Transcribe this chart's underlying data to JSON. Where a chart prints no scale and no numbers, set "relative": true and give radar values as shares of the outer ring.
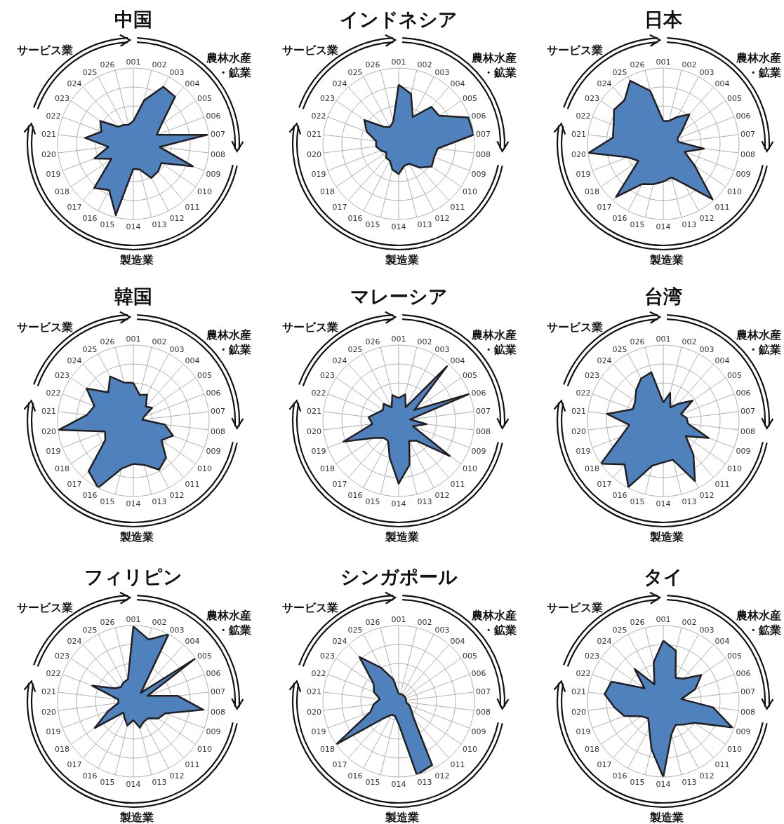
{
  "chart_data": [
    {
      "type": "radar",
      "title": "中国",
      "relative": true,
      "grid": true,
      "categories": [
        "001",
        "002",
        "003",
        "004",
        "005",
        "006",
        "007",
        "008",
        "009",
        "010",
        "011",
        "012",
        "013",
        "014",
        "015",
        "016",
        "017",
        "018",
        "019",
        "020",
        "021",
        "022",
        "023",
        "024",
        "025",
        "026"
      ],
      "annotations": [
        "農林水産・鉱業",
        "製造業",
        "サービス業"
      ],
      "series": [
        {
          "color": "#4f81bd",
          "values": [
            0.3,
            0.59,
            0.85,
            0.83,
            0.45,
            0.33,
            0.98,
            0.35,
            0.84,
            0.45,
            0.49,
            0.51,
            0.35,
            0.33,
            0.97,
            0.69,
            0.78,
            0.35,
            0.55,
            0.33,
            0.64,
            0.45,
            0.53,
            0.3,
            0.28,
            0.26
          ]
        }
      ]
    },
    {
      "type": "radar",
      "title": "インドネシア",
      "relative": true,
      "grid": true,
      "categories": [
        "001",
        "002",
        "003",
        "004",
        "005",
        "006",
        "007",
        "008",
        "009",
        "010",
        "011",
        "012",
        "013",
        "014",
        "015",
        "016",
        "017",
        "018",
        "019",
        "020",
        "021",
        "022",
        "023",
        "024",
        "025",
        "026"
      ],
      "annotations": [
        "農林水産・鉱業",
        "製造業",
        "サービス業"
      ],
      "series": [
        {
          "color": "#4f81bd",
          "values": [
            0.78,
            0.68,
            0.4,
            0.65,
            0.65,
            0.98,
            1.0,
            0.52,
            0.5,
            0.53,
            0.42,
            0.3,
            0.3,
            0.4,
            0.35,
            0.25,
            0.25,
            0.2,
            0.25,
            0.3,
            0.3,
            0.45,
            0.55,
            0.3,
            0.25,
            0.3
          ]
        }
      ]
    },
    {
      "type": "radar",
      "title": "日本",
      "relative": true,
      "grid": true,
      "categories": [
        "001",
        "002",
        "003",
        "004",
        "005",
        "006",
        "007",
        "008",
        "009",
        "010",
        "011",
        "012",
        "013",
        "014",
        "015",
        "016",
        "017",
        "018",
        "019",
        "020",
        "021",
        "022",
        "023",
        "024",
        "025",
        "026"
      ],
      "annotations": [
        "農林水産・鉱業",
        "製造業",
        "サービス業"
      ],
      "series": [
        {
          "color": "#4f81bd",
          "values": [
            0.3,
            0.31,
            0.4,
            0.52,
            0.3,
            0.2,
            0.2,
            0.54,
            0.3,
            0.5,
            0.98,
            0.6,
            0.46,
            0.5,
            0.55,
            0.6,
            0.94,
            0.4,
            0.5,
            0.99,
            0.67,
            0.7,
            0.79,
            0.77,
            0.94,
            0.72
          ]
        }
      ]
    },
    {
      "type": "radar",
      "title": "韓国",
      "relative": true,
      "grid": true,
      "categories": [
        "001",
        "002",
        "003",
        "004",
        "005",
        "006",
        "007",
        "008",
        "009",
        "010",
        "011",
        "012",
        "013",
        "014",
        "015",
        "016",
        "017",
        "018",
        "019",
        "020",
        "021",
        "022",
        "023",
        "024",
        "025",
        "026"
      ],
      "annotations": [
        "農林水産・鉱業",
        "製造業",
        "サービス業"
      ],
      "series": [
        {
          "color": "#4f81bd",
          "values": [
            0.5,
            0.35,
            0.39,
            0.25,
            0.3,
            0.15,
            0.12,
            0.42,
            0.56,
            0.45,
            0.65,
            0.73,
            0.6,
            0.57,
            0.65,
            1.0,
            0.89,
            0.45,
            0.4,
            0.99,
            0.62,
            0.55,
            0.75,
            0.5,
            0.66,
            0.52
          ]
        }
      ]
    },
    {
      "type": "radar",
      "title": "マレーシア",
      "relative": true,
      "grid": true,
      "categories": [
        "001",
        "002",
        "003",
        "004",
        "005",
        "006",
        "007",
        "008",
        "009",
        "010",
        "011",
        "012",
        "013",
        "014",
        "015",
        "016",
        "017",
        "018",
        "019",
        "020",
        "021",
        "022",
        "023",
        "024",
        "025",
        "026"
      ],
      "annotations": [
        "農林水産・鉱業",
        "製造業",
        "サービス業"
      ],
      "series": [
        {
          "color": "#4f81bd",
          "values": [
            0.3,
            0.36,
            0.2,
            0.96,
            0.25,
            1.0,
            0.15,
            0.37,
            0.2,
            0.82,
            0.35,
            0.3,
            0.6,
            0.83,
            0.5,
            0.3,
            0.3,
            0.4,
            0.78,
            0.35,
            0.4,
            0.3,
            0.25,
            0.3,
            0.2,
            0.35
          ]
        }
      ]
    },
    {
      "type": "radar",
      "title": "台湾",
      "relative": true,
      "grid": true,
      "categories": [
        "001",
        "002",
        "003",
        "004",
        "005",
        "006",
        "007",
        "008",
        "009",
        "010",
        "011",
        "012",
        "013",
        "014",
        "015",
        "016",
        "017",
        "018",
        "019",
        "020",
        "021",
        "022",
        "023",
        "024",
        "025",
        "026"
      ],
      "annotations": [
        "農林水産・鉱業",
        "製造業",
        "サービス業"
      ],
      "series": [
        {
          "color": "#4f81bd",
          "values": [
            0.24,
            0.38,
            0.2,
            0.3,
            0.47,
            0.25,
            0.31,
            0.33,
            0.64,
            0.36,
            0.6,
            0.9,
            0.53,
            0.55,
            0.61,
            0.99,
            0.77,
            1.0,
            0.6,
            0.45,
            0.75,
            0.43,
            0.45,
            0.54,
            0.63,
            0.66
          ]
        }
      ]
    },
    {
      "type": "radar",
      "title": "フィリピン",
      "relative": true,
      "grid": true,
      "categories": [
        "001",
        "002",
        "003",
        "004",
        "005",
        "006",
        "007",
        "008",
        "009",
        "010",
        "011",
        "012",
        "013",
        "014",
        "015",
        "016",
        "017",
        "018",
        "019",
        "020",
        "021",
        "022",
        "023",
        "024",
        "025",
        "026"
      ],
      "annotations": [
        "農林水産・鉱業",
        "製造業",
        "サービス業"
      ],
      "series": [
        {
          "color": "#4f81bd",
          "values": [
            0.99,
            0.84,
            1.0,
            0.15,
            0.98,
            0.2,
            0.59,
            0.93,
            0.45,
            0.4,
            0.3,
            0.3,
            0.36,
            0.25,
            0.33,
            0.25,
            0.2,
            0.62,
            0.35,
            0.2,
            0.2,
            0.58,
            0.3,
            0.25,
            0.28,
            0.3
          ]
        }
      ]
    },
    {
      "type": "radar",
      "title": "シンガポール",
      "relative": true,
      "grid": true,
      "categories": [
        "001",
        "002",
        "003",
        "004",
        "005",
        "006",
        "007",
        "008",
        "009",
        "010",
        "011",
        "012",
        "013",
        "014",
        "015",
        "016",
        "017",
        "018",
        "019",
        "020",
        "021",
        "022",
        "023",
        "024",
        "025",
        "026"
      ],
      "annotations": [
        "農林水産・鉱業",
        "製造業",
        "サービス業"
      ],
      "series": [
        {
          "color": "#4f81bd",
          "values": [
            0.1,
            0.1,
            0.1,
            0.1,
            0.1,
            0.1,
            0.1,
            0.1,
            0.15,
            0.2,
            0.3,
            0.95,
            1.0,
            0.3,
            0.2,
            0.2,
            0.3,
            1.0,
            0.4,
            0.33,
            0.25,
            0.35,
            0.4,
            0.78,
            0.5,
            0.3
          ]
        }
      ]
    },
    {
      "type": "radar",
      "title": "タイ",
      "relative": true,
      "grid": true,
      "categories": [
        "001",
        "002",
        "003",
        "004",
        "005",
        "006",
        "007",
        "008",
        "009",
        "010",
        "011",
        "012",
        "013",
        "014",
        "015",
        "016",
        "017",
        "018",
        "019",
        "020",
        "021",
        "022",
        "023",
        "024",
        "025",
        "026"
      ],
      "annotations": [
        "農林水産・鉱業",
        "製造業",
        "サービス業"
      ],
      "series": [
        {
          "color": "#4f81bd",
          "values": [
            0.8,
            0.69,
            0.35,
            0.4,
            0.61,
            0.45,
            0.24,
            0.66,
            0.97,
            0.5,
            0.41,
            0.35,
            0.45,
            1.0,
            0.65,
            0.4,
            0.3,
            0.35,
            0.55,
            0.65,
            0.78,
            0.73,
            0.3,
            0.57,
            0.25,
            0.53
          ]
        }
      ]
    }
  ]
}
